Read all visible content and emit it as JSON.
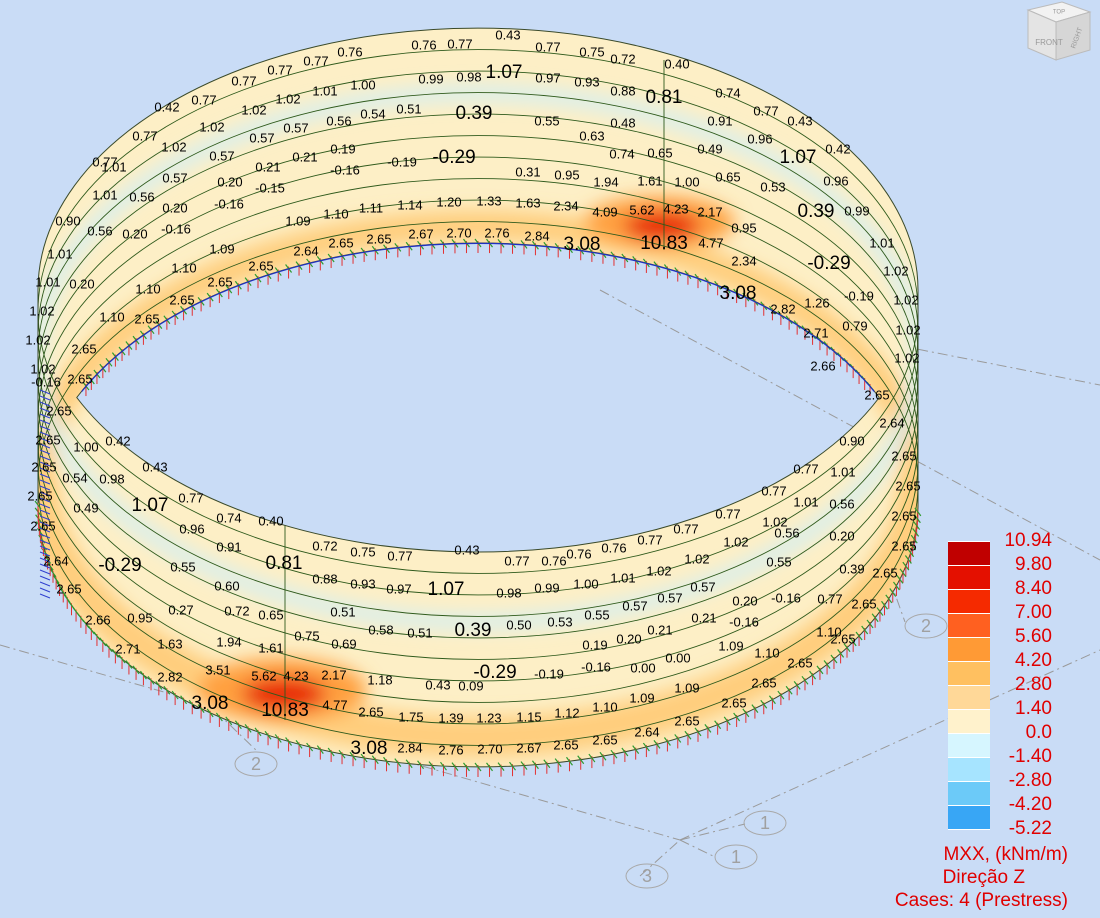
{
  "viewcube": {
    "top": "TOP",
    "front": "FRONT",
    "right": "RIGHT"
  },
  "grid_labels": [
    "1",
    "1",
    "2",
    "2",
    "3"
  ],
  "legend": {
    "labels": [
      "10.94",
      "9.80",
      "8.40",
      "7.00",
      "5.60",
      "4.20",
      "2.80",
      "1.40",
      "0.0",
      "-1.40",
      "-2.80",
      "-4.20",
      "-5.22"
    ],
    "colors": [
      "#c00000",
      "#e41000",
      "#f52a00",
      "#ff6020",
      "#ff9a35",
      "#ffc060",
      "#ffd898",
      "#fff2cc",
      "#d6f6ff",
      "#a6e4ff",
      "#6ccaf8",
      "#38a6f5"
    ],
    "quantity": "MXX, (kNm/m)",
    "direction": "Direção Z",
    "cases": "Cases: 4 (Prestress)"
  },
  "contour_labels": [
    "0.43",
    "0.77",
    "0.75",
    "0.72",
    "0.40",
    "0.77",
    "0.76",
    "0.76",
    "0.77",
    "0.77",
    "0.77",
    "1.07",
    "0.97",
    "0.93",
    "0.88",
    "0.81",
    "0.74",
    "0.98",
    "0.99",
    "1.00",
    "1.01",
    "1.02",
    "1.02",
    "0.77",
    "0.42",
    "0.39",
    "0.55",
    "0.48",
    "0.91",
    "0.77",
    "0.43",
    "0.51",
    "0.54",
    "0.56",
    "0.57",
    "0.57",
    "1.02",
    "0.77",
    "-0.29",
    "0.63",
    "0.74",
    "0.65",
    "0.49",
    "0.96",
    "1.07",
    "0.42",
    "0.19",
    "0.21",
    "-0.19",
    "-0.16",
    "0.21",
    "0.57",
    "1.02",
    "0.77",
    "0.31",
    "0.95",
    "1.94",
    "1.61",
    "1.00",
    "0.65",
    "0.53",
    "0.96",
    "0.20",
    "-0.15",
    "1.01",
    "0.57",
    "4.09",
    "5.62",
    "4.23",
    "2.17",
    "2.34",
    "1.63",
    "1.33",
    "1.20",
    "1.14",
    "1.11",
    "1.10",
    "1.09",
    "0.39",
    "0.99",
    "-0.16",
    "0.20",
    "0.56",
    "1.01",
    "10.83",
    "4.77",
    "3.08",
    "2.84",
    "2.76",
    "2.70",
    "2.67",
    "2.65",
    "2.65",
    "2.64",
    "0.95",
    "1.01",
    "1.09",
    "-0.16",
    "0.56",
    "0.20",
    "0.90",
    "2.65",
    "1.10",
    "1.01",
    "2.34",
    "-0.29",
    "1.02",
    "3.08",
    "2.82",
    "1.26",
    "-0.19",
    "1.02",
    "2.65",
    "1.10",
    "0.20",
    "1.01",
    "2.65",
    "1.02",
    "2.71",
    "0.79",
    "1.02",
    "2.65",
    "1.10",
    "1.02",
    "2.66",
    "1.02",
    "2.65",
    "2.65",
    "-0.16",
    "1.02",
    "2.65",
    "2.64",
    "2.65",
    "2.65",
    "1.00",
    "0.42",
    "2.65",
    "0.54",
    "0.98",
    "0.43",
    "2.65",
    "0.49",
    "1.07",
    "0.77",
    "2.65",
    "0.96",
    "0.74",
    "0.40",
    "2.64",
    "-0.29",
    "0.91",
    "0.81",
    "0.55",
    "0.72",
    "0.75",
    "0.77",
    "0.43",
    "0.77",
    "0.76",
    "0.76",
    "0.76",
    "0.77",
    "0.77",
    "0.77",
    "0.77",
    "0.90",
    "0.77",
    "1.01",
    "2.65",
    "2.65",
    "0.56",
    "1.02",
    "1.01",
    "2.65",
    "0.88",
    "0.93",
    "0.97",
    "1.07",
    "0.98",
    "0.99",
    "1.00",
    "1.01",
    "1.02",
    "1.02",
    "1.02",
    "0.56",
    "0.20",
    "2.65",
    "0.60",
    "0.57",
    "0.55",
    "0.39",
    "2.65",
    "2.65",
    "0.27",
    "0.72",
    "0.65",
    "0.51",
    "0.50",
    "0.53",
    "0.55",
    "0.57",
    "0.57",
    "0.20",
    "-0.16",
    "0.77",
    "2.65",
    "0.95",
    "2.66",
    "0.39",
    "0.58",
    "0.51",
    "-0.16",
    "0.21",
    "0.21",
    "0.20",
    "0.19",
    "2.71",
    "1.63",
    "1.94",
    "1.61",
    "0.75",
    "0.69",
    "1.10",
    "2.65",
    "2.82",
    "3.51",
    "5.62",
    "4.23",
    "2.17",
    "1.18",
    "0.43",
    "0.09",
    "-0.29",
    "-0.19",
    "-0.16",
    "0.00",
    "0.00",
    "1.09",
    "1.10",
    "2.65",
    "3.08",
    "10.83",
    "4.77",
    "2.65",
    "1.75",
    "1.39",
    "1.23",
    "1.15",
    "1.12",
    "1.10",
    "1.09",
    "1.09",
    "2.65",
    "3.08",
    "2.84",
    "2.76",
    "2.70",
    "2.67",
    "2.65",
    "2.65",
    "2.64",
    "2.65",
    "2.65"
  ]
}
